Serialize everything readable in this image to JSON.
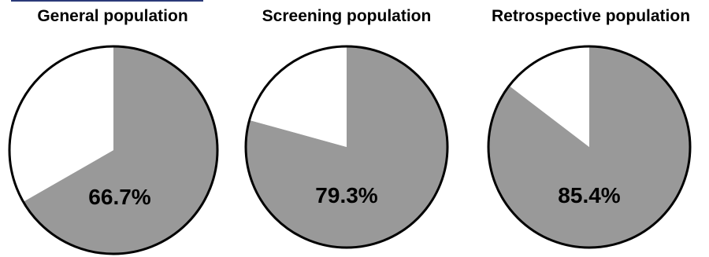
{
  "chart_data": [
    {
      "type": "pie",
      "title": "General population",
      "value_label": "66.7%",
      "slices": [
        {
          "value": 66.7,
          "color": "#999999"
        },
        {
          "value": 33.3,
          "color": "#ffffff"
        }
      ]
    },
    {
      "type": "pie",
      "title": "Screening population",
      "value_label": "79.3%",
      "slices": [
        {
          "value": 79.3,
          "color": "#999999"
        },
        {
          "value": 20.7,
          "color": "#ffffff"
        }
      ]
    },
    {
      "type": "pie",
      "title": "Retrospective population",
      "value_label": "85.4%",
      "slices": [
        {
          "value": 85.4,
          "color": "#999999"
        },
        {
          "value": 14.6,
          "color": "#ffffff"
        }
      ]
    }
  ]
}
